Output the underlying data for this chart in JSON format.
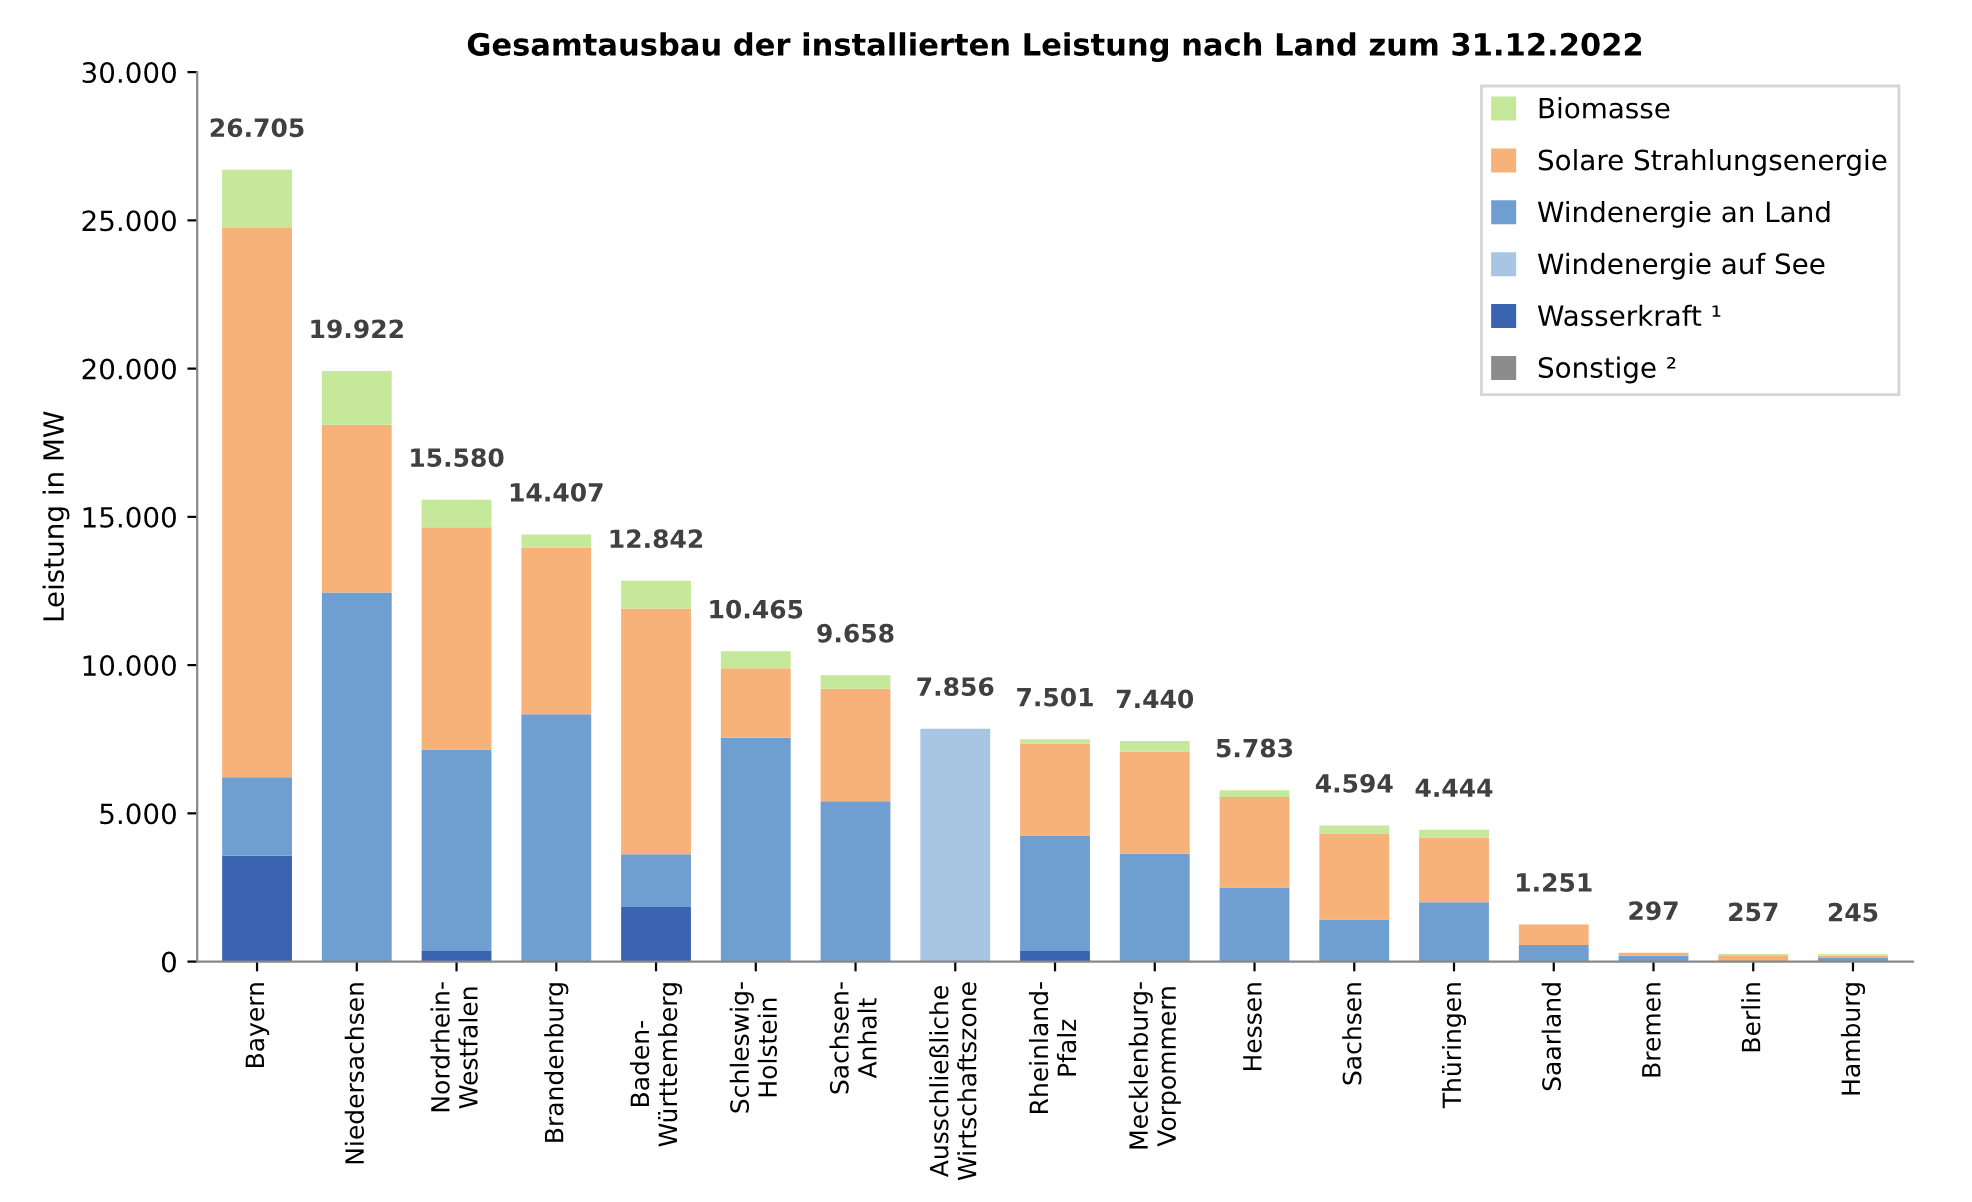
{
  "chart_data": {
    "type": "bar",
    "stacked": true,
    "title": "Gesamtausbau der installierten Leistung nach Land zum 31.12.2022",
    "ylabel": "Leistung in MW",
    "categories": [
      "Bayern",
      "Niedersachsen",
      "Nordrhein-\nWestfalen",
      "Brandenburg",
      "Baden-\nWürttemberg",
      "Schleswig-\nHolstein",
      "Sachsen-\nAnhalt",
      "Ausschließliche\nWirtschaftszone",
      "Rheinland-\nPfalz",
      "Mecklenburg-\nVorpommern",
      "Hessen",
      "Sachsen",
      "Thüringen",
      "Saarland",
      "Bremen",
      "Berlin",
      "Hamburg"
    ],
    "series": [
      {
        "name": "Sonstige ²",
        "color": "#8c8c8c",
        "values": [
          null,
          null,
          null,
          null,
          null,
          null,
          null,
          null,
          null,
          null,
          null,
          null,
          null,
          null,
          null,
          null,
          null
        ]
      },
      {
        "name": "Wasserkraft ¹",
        "color": "#3b64b0",
        "values": [
          3570,
          null,
          360,
          null,
          1840,
          null,
          null,
          null,
          360,
          null,
          null,
          null,
          null,
          null,
          null,
          null,
          null
        ]
      },
      {
        "name": "Windenergie auf See",
        "color": "#a9c5e4",
        "values": [
          null,
          null,
          null,
          null,
          null,
          null,
          null,
          7856,
          null,
          null,
          null,
          null,
          null,
          null,
          null,
          null,
          null
        ]
      },
      {
        "name": "Windenergie an Land",
        "color": "#6f9fd1",
        "values": [
          2650,
          12450,
          6790,
          8340,
          1780,
          7550,
          5410,
          0,
          3890,
          3640,
          2500,
          1420,
          2000,
          560,
          200,
          10,
          125
        ]
      },
      {
        "name": "Solare Strahlungsenergie",
        "color": "#f7b27a",
        "values": [
          18550,
          5660,
          7500,
          5620,
          8290,
          2340,
          3790,
          null,
          3100,
          3440,
          3050,
          2900,
          2180,
          691,
          97,
          207,
          80
        ]
      },
      {
        "name": "Biomasse",
        "color": "#c5e89a",
        "values": [
          1935,
          1812,
          930,
          447,
          932,
          575,
          458,
          null,
          151,
          360,
          233,
          274,
          264,
          null,
          null,
          40,
          40
        ]
      }
    ],
    "totals": [
      "26.705",
      "19.922",
      "15.580",
      "14.407",
      "12.842",
      "10.465",
      "9.658",
      "7.856",
      "7.501",
      "7.440",
      "5.783",
      "4.594",
      "4.444",
      "1.251",
      "297",
      "257",
      "245"
    ],
    "ylim": [
      0,
      30000
    ],
    "yticks": [
      {
        "value": 0,
        "label": "0"
      },
      {
        "value": 5000,
        "label": "5.000"
      },
      {
        "value": 10000,
        "label": "10.000"
      },
      {
        "value": 15000,
        "label": "15.000"
      },
      {
        "value": 20000,
        "label": "20.000"
      },
      {
        "value": 25000,
        "label": "25.000"
      },
      {
        "value": 30000,
        "label": "30.000"
      }
    ],
    "grid": false,
    "legend": "top right"
  }
}
